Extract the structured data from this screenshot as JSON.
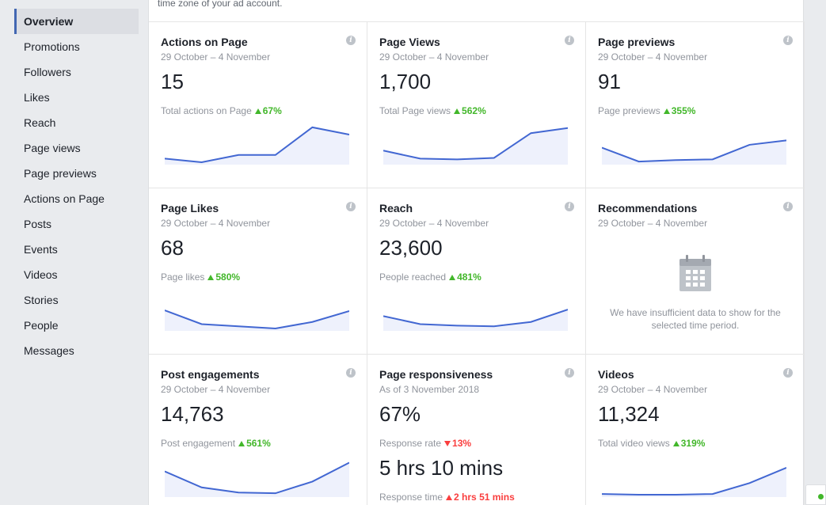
{
  "colors": {
    "accent": "#4267b2",
    "up": "#42b72a",
    "down": "#fa3e3e",
    "spark_line": "#4267d2",
    "spark_fill": "#eef1fc"
  },
  "sidebar": {
    "items": [
      {
        "label": "Overview",
        "active": true
      },
      {
        "label": "Promotions"
      },
      {
        "label": "Followers"
      },
      {
        "label": "Likes"
      },
      {
        "label": "Reach"
      },
      {
        "label": "Page views"
      },
      {
        "label": "Page previews"
      },
      {
        "label": "Actions on Page"
      },
      {
        "label": "Posts"
      },
      {
        "label": "Events"
      },
      {
        "label": "Videos"
      },
      {
        "label": "Stories"
      },
      {
        "label": "People"
      },
      {
        "label": "Messages"
      }
    ]
  },
  "main": {
    "top_note": "time zone of your ad account.",
    "cards": [
      {
        "title": "Actions on Page",
        "date": "29 October – 4 November",
        "value": "15",
        "sub_label": "Total actions on Page",
        "change": "67%",
        "direction": "up",
        "spark": [
          5,
          0,
          10,
          10,
          48,
          38
        ]
      },
      {
        "title": "Page Views",
        "date": "29 October – 4 November",
        "value": "1,700",
        "sub_label": "Total Page views",
        "change": "562%",
        "direction": "up",
        "spark": [
          16,
          5,
          4,
          6,
          40,
          47
        ]
      },
      {
        "title": "Page previews",
        "date": "29 October – 4 November",
        "value": "91",
        "sub_label": "Page previews",
        "change": "355%",
        "direction": "up",
        "spark": [
          20,
          1,
          3,
          4,
          24,
          30
        ]
      },
      {
        "title": "Page Likes",
        "date": "29 October – 4 November",
        "value": "68",
        "sub_label": "Page likes",
        "change": "580%",
        "direction": "up",
        "spark": [
          25,
          6,
          3,
          0,
          9,
          24
        ]
      },
      {
        "title": "Reach",
        "date": "29 October – 4 November",
        "value": "23,600",
        "sub_label": "People reached",
        "change": "481%",
        "direction": "up",
        "spark": [
          17,
          6,
          4,
          3,
          9,
          26
        ]
      },
      {
        "title": "Recommendations",
        "date": "29 October – 4 November",
        "nodata": "We have insufficient data to show for the selected time period."
      },
      {
        "title": "Post engagements",
        "date": "29 October – 4 November",
        "value": "14,763",
        "sub_label": "Post engagement",
        "change": "561%",
        "direction": "up",
        "spark": [
          32,
          10,
          3,
          2,
          18,
          44
        ]
      },
      {
        "title": "Page responsiveness",
        "date": "As of 3 November 2018",
        "value": "67%",
        "sub_label": "Response rate",
        "change": "13%",
        "direction": "down",
        "value2": "5 hrs 10 mins",
        "sub_label2": "Response time",
        "change2": "2 hrs 51 mins",
        "direction2": "up_red"
      },
      {
        "title": "Videos",
        "date": "29 October – 4 November",
        "value": "11,324",
        "sub_label": "Total video views",
        "change": "319%",
        "direction": "up",
        "spark": [
          1,
          0,
          0,
          1,
          16,
          37
        ]
      }
    ]
  }
}
